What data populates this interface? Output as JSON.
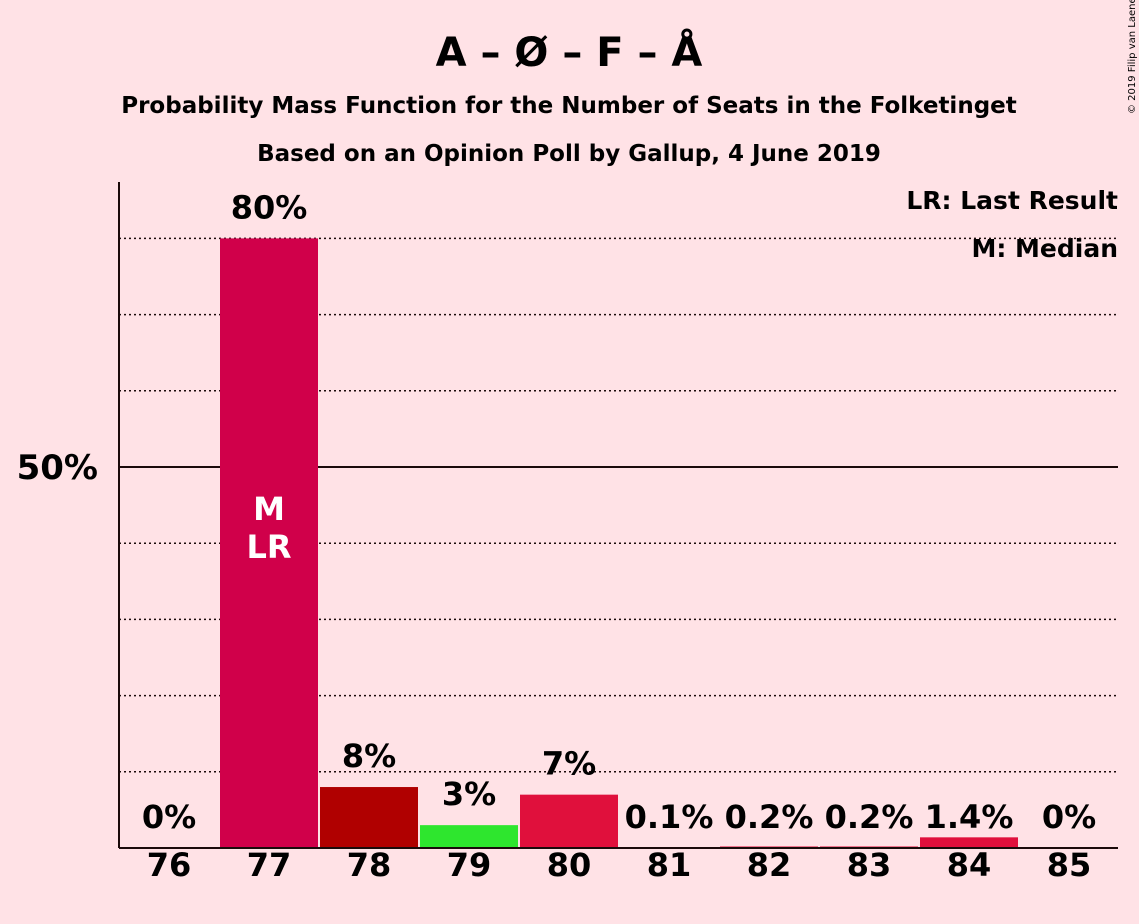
{
  "title": "A – Ø – F – Å",
  "subtitle": "Probability Mass Function for the Number of Seats in the Folketinget",
  "subtitle2": "Based on an Opinion Poll by Gallup, 4 June 2019",
  "copyright": "© 2019 Filip van Laenen",
  "legend": {
    "last_result": "LR: Last Result",
    "median": "M: Median"
  },
  "chart_data": {
    "type": "bar",
    "categories": [
      "76",
      "77",
      "78",
      "79",
      "80",
      "81",
      "82",
      "83",
      "84",
      "85"
    ],
    "values": [
      0,
      80,
      8,
      3,
      7,
      0.1,
      0.2,
      0.2,
      1.4,
      0
    ],
    "value_labels": [
      "0%",
      "80%",
      "8%",
      "3%",
      "7%",
      "0.1%",
      "0.2%",
      "0.2%",
      "1.4%",
      "0%"
    ],
    "bar_colors": [
      "#C8003C",
      "#D0004A",
      "#B00000",
      "#2EE62E",
      "#E0103C",
      "#E0103C",
      "#E0103C",
      "#E0103C",
      "#E0103C",
      "#E0103C"
    ],
    "ylim": [
      0,
      87
    ],
    "ytick_label": "50%",
    "ytick_value": 50,
    "gridlines": [
      10,
      20,
      30,
      40,
      60,
      70,
      80
    ],
    "median_category": "77",
    "last_result_category": "77",
    "median_marker": "M",
    "last_result_marker": "LR"
  }
}
